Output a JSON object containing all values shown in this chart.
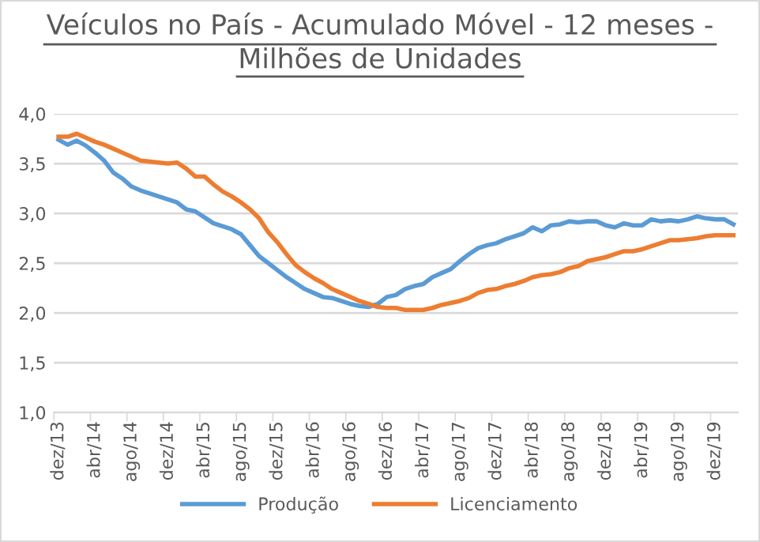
{
  "chart_data": {
    "type": "line",
    "title": "Veículos no País - Acumulado Móvel - 12 meses -\nMilhões de Unidades",
    "categories": [
      "dez/13",
      null,
      null,
      null,
      "abr/14",
      null,
      null,
      null,
      "ago/14",
      null,
      null,
      null,
      "dez/14",
      null,
      null,
      null,
      "abr/15",
      null,
      null,
      null,
      "ago/15",
      null,
      null,
      null,
      "dez/15",
      null,
      null,
      null,
      "abr/16",
      null,
      null,
      null,
      "ago/16",
      null,
      null,
      null,
      "dez/16",
      null,
      null,
      null,
      "abr/17",
      null,
      null,
      null,
      "ago/17",
      null,
      null,
      null,
      "dez/17",
      null,
      null,
      null,
      "abr/18",
      null,
      null,
      null,
      "ago/18",
      null,
      null,
      null,
      "dez/18",
      null,
      null,
      null,
      "abr/19",
      null,
      null,
      null,
      "ago/19",
      null,
      null,
      null,
      "dez/19",
      null,
      null
    ],
    "series": [
      {
        "name": "Produção",
        "color": "#5b9bd5",
        "values": [
          3.74,
          3.69,
          3.73,
          3.68,
          3.61,
          3.53,
          3.41,
          3.35,
          3.27,
          3.23,
          3.2,
          3.17,
          3.14,
          3.11,
          3.04,
          3.02,
          2.96,
          2.9,
          2.87,
          2.84,
          2.79,
          2.68,
          2.57,
          2.5,
          2.43,
          2.36,
          2.3,
          2.24,
          2.2,
          2.16,
          2.15,
          2.12,
          2.09,
          2.07,
          2.06,
          2.09,
          2.16,
          2.18,
          2.24,
          2.27,
          2.29,
          2.36,
          2.4,
          2.44,
          2.52,
          2.59,
          2.65,
          2.68,
          2.7,
          2.74,
          2.77,
          2.8,
          2.86,
          2.82,
          2.88,
          2.89,
          2.92,
          2.91,
          2.92,
          2.92,
          2.88,
          2.86,
          2.9,
          2.88,
          2.88,
          2.94,
          2.92,
          2.93,
          2.92,
          2.94,
          2.97,
          2.95,
          2.94,
          2.94,
          2.89
        ]
      },
      {
        "name": "Licenciamento",
        "color": "#ed7d31",
        "values": [
          3.77,
          3.77,
          3.8,
          3.76,
          3.72,
          3.69,
          3.65,
          3.61,
          3.57,
          3.53,
          3.52,
          3.51,
          3.5,
          3.51,
          3.45,
          3.37,
          3.37,
          3.29,
          3.22,
          3.17,
          3.11,
          3.04,
          2.95,
          2.81,
          2.71,
          2.59,
          2.48,
          2.41,
          2.35,
          2.3,
          2.24,
          2.2,
          2.16,
          2.12,
          2.09,
          2.06,
          2.05,
          2.05,
          2.03,
          2.03,
          2.03,
          2.05,
          2.08,
          2.1,
          2.12,
          2.15,
          2.2,
          2.23,
          2.24,
          2.27,
          2.29,
          2.32,
          2.36,
          2.38,
          2.39,
          2.41,
          2.45,
          2.47,
          2.52,
          2.54,
          2.56,
          2.59,
          2.62,
          2.62,
          2.64,
          2.67,
          2.7,
          2.73,
          2.73,
          2.74,
          2.75,
          2.77,
          2.78,
          2.78,
          2.78
        ]
      }
    ],
    "ylim": [
      1.0,
      4.0
    ],
    "yticks": [
      {
        "value": 1.0,
        "label": "1,0"
      },
      {
        "value": 1.5,
        "label": "1,5"
      },
      {
        "value": 2.0,
        "label": "2,0"
      },
      {
        "value": 2.5,
        "label": "2,5"
      },
      {
        "value": 3.0,
        "label": "3,0"
      },
      {
        "value": 3.5,
        "label": "3,5"
      },
      {
        "value": 4.0,
        "label": "4,0"
      }
    ],
    "grid": "y",
    "legend": "bottom",
    "marker": "none",
    "line_style": "solid"
  }
}
